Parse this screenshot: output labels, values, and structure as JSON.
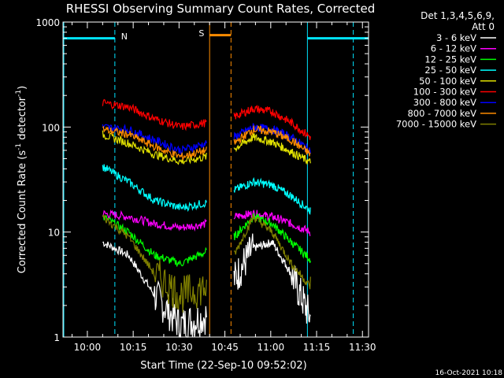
{
  "chart_data": {
    "type": "line",
    "title": "RHESSI Observing Summary Count Rates, Corrected",
    "xlabel": "Start Time (22-Sep-10 09:52:02)",
    "ylabel_main": "Corrected Count Rate (s",
    "ylabel_sup1": "-1",
    "ylabel_mid": " detector",
    "ylabel_sup2": "-1",
    "ylabel_end": ")",
    "y_scale": "log",
    "ylim": [
      1,
      1000
    ],
    "xlim": [
      "09:52:02",
      "11:32:00"
    ],
    "x_ticks": [
      "10:00",
      "10:15",
      "10:30",
      "10:45",
      "11:00",
      "11:15",
      "11:30"
    ],
    "y_ticks": [
      "1",
      "10",
      "100",
      "1000"
    ],
    "legend_header": [
      "Det 1,3,4,5,6,9,",
      "Att 0"
    ],
    "legend_position": "top-right",
    "timestamp": "16-Oct-2021 10:18",
    "flags": {
      "night_label": "N",
      "saa_label": "S",
      "night_color": "#00e5ff",
      "saa_color": "#ff8c00"
    },
    "segments": [
      [
        "10:05",
        "10:39"
      ],
      [
        "10:48",
        "11:13"
      ]
    ],
    "series": [
      {
        "name": "3 - 6 keV",
        "color": "#ffffff",
        "values": [
          8,
          6,
          2.5,
          1.3,
          1.6,
          3.5,
          7,
          8,
          4,
          1.5
        ]
      },
      {
        "name": "6 - 12 keV",
        "color": "#ff00ff",
        "values": [
          15,
          14,
          12,
          11,
          12,
          14,
          15,
          14,
          12,
          10
        ]
      },
      {
        "name": "12 - 25 keV",
        "color": "#00ff00",
        "values": [
          14,
          10,
          6,
          5,
          6.5,
          9,
          14,
          12,
          8,
          5.5
        ]
      },
      {
        "name": "25 - 50 keV",
        "color": "#00ffff",
        "values": [
          42,
          30,
          20,
          17,
          19,
          25,
          30,
          28,
          22,
          16
        ]
      },
      {
        "name": "50 - 100 keV",
        "color": "#e0e000",
        "values": [
          85,
          70,
          55,
          47,
          52,
          62,
          80,
          72,
          58,
          46
        ]
      },
      {
        "name": "100 - 300 keV",
        "color": "#ff0000",
        "values": [
          170,
          155,
          120,
          100,
          110,
          125,
          150,
          140,
          110,
          80
        ]
      },
      {
        "name": "300 - 800 keV",
        "color": "#0000ff",
        "values": [
          100,
          95,
          75,
          60,
          70,
          80,
          100,
          95,
          80,
          60
        ]
      },
      {
        "name": "800 - 7000 keV",
        "color": "#ff8c00",
        "values": [
          95,
          85,
          65,
          52,
          60,
          70,
          95,
          90,
          75,
          55
        ]
      },
      {
        "name": "7000 - 15000 keV",
        "color": "#808000",
        "values": [
          14,
          9,
          4,
          2.5,
          3,
          6,
          14,
          10,
          5,
          3
        ]
      }
    ]
  }
}
